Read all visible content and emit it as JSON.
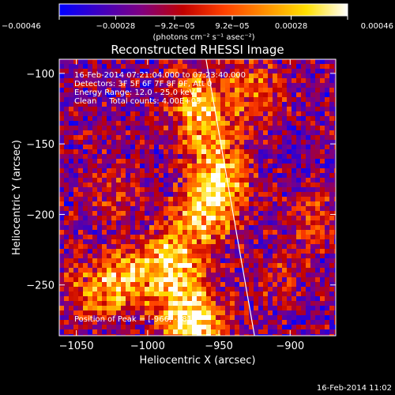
{
  "chart_data": {
    "type": "heatmap",
    "title": "Reconstructed RHESSI Image",
    "xlabel": "Heliocentric X (arcsec)",
    "ylabel": "Heliocentric Y (arcsec)",
    "xlim": [
      -1062,
      -868
    ],
    "ylim": [
      -286,
      -90
    ],
    "x_ticks": [
      -1050,
      -1000,
      -950,
      -900
    ],
    "y_ticks": [
      -100,
      -150,
      -200,
      -250
    ],
    "x_tick_labels": [
      "−1050",
      "−1000",
      "−950",
      "−900"
    ],
    "y_tick_labels": [
      "−100",
      "−150",
      "−200",
      "−250"
    ],
    "colorbar": {
      "min": -0.00046,
      "max": 0.00046,
      "ticks": [
        -0.00046,
        -0.00028,
        -9.2e-05,
        9.2e-05,
        0.00028,
        0.00046
      ],
      "tick_labels": [
        "−0.00046",
        "−0.00028",
        "−9.2e−05",
        "9.2e−05",
        "0.00028",
        "0.00046"
      ],
      "unit_label": "(photons cm⁻² s⁻¹ asec⁻²)",
      "colors": [
        "#0000ff",
        "#4000c0",
        "#800080",
        "#c00000",
        "#ff4000",
        "#ff9000",
        "#ffe000",
        "#ffffff"
      ]
    },
    "annotations": [
      "16-Feb-2014 07:21:04.000 to 07:23:40.000",
      "Detectors: 3F 5F 6F 7F 8F 9F, Att 0",
      "Energy Range: 12.0 - 25.0 keV",
      "Clean     Total counts: 4.00E+03"
    ],
    "peak_label": "Position of Peak = [-966, -281]",
    "limb_line": {
      "x": [
        -959,
        -925
      ],
      "y": [
        -90,
        -286
      ]
    },
    "sources": [
      {
        "x": -965,
        "y": -120,
        "strength": 0.85
      },
      {
        "x": -955,
        "y": -150,
        "strength": 0.6
      },
      {
        "x": -950,
        "y": -180,
        "strength": 0.9
      },
      {
        "x": -962,
        "y": -205,
        "strength": 0.7
      },
      {
        "x": -985,
        "y": -230,
        "strength": 0.8
      },
      {
        "x": -1015,
        "y": -245,
        "strength": 0.75
      },
      {
        "x": -975,
        "y": -258,
        "strength": 0.7
      },
      {
        "x": -966,
        "y": -281,
        "strength": 1.0
      },
      {
        "x": -1040,
        "y": -255,
        "strength": 0.5
      },
      {
        "x": -925,
        "y": -110,
        "strength": 0.55
      },
      {
        "x": -885,
        "y": -205,
        "strength": 0.4
      },
      {
        "x": -1025,
        "y": -185,
        "strength": 0.35
      },
      {
        "x": -910,
        "y": -245,
        "strength": 0.25
      }
    ]
  },
  "footer": {
    "timestamp": "16-Feb-2014 11:02"
  }
}
